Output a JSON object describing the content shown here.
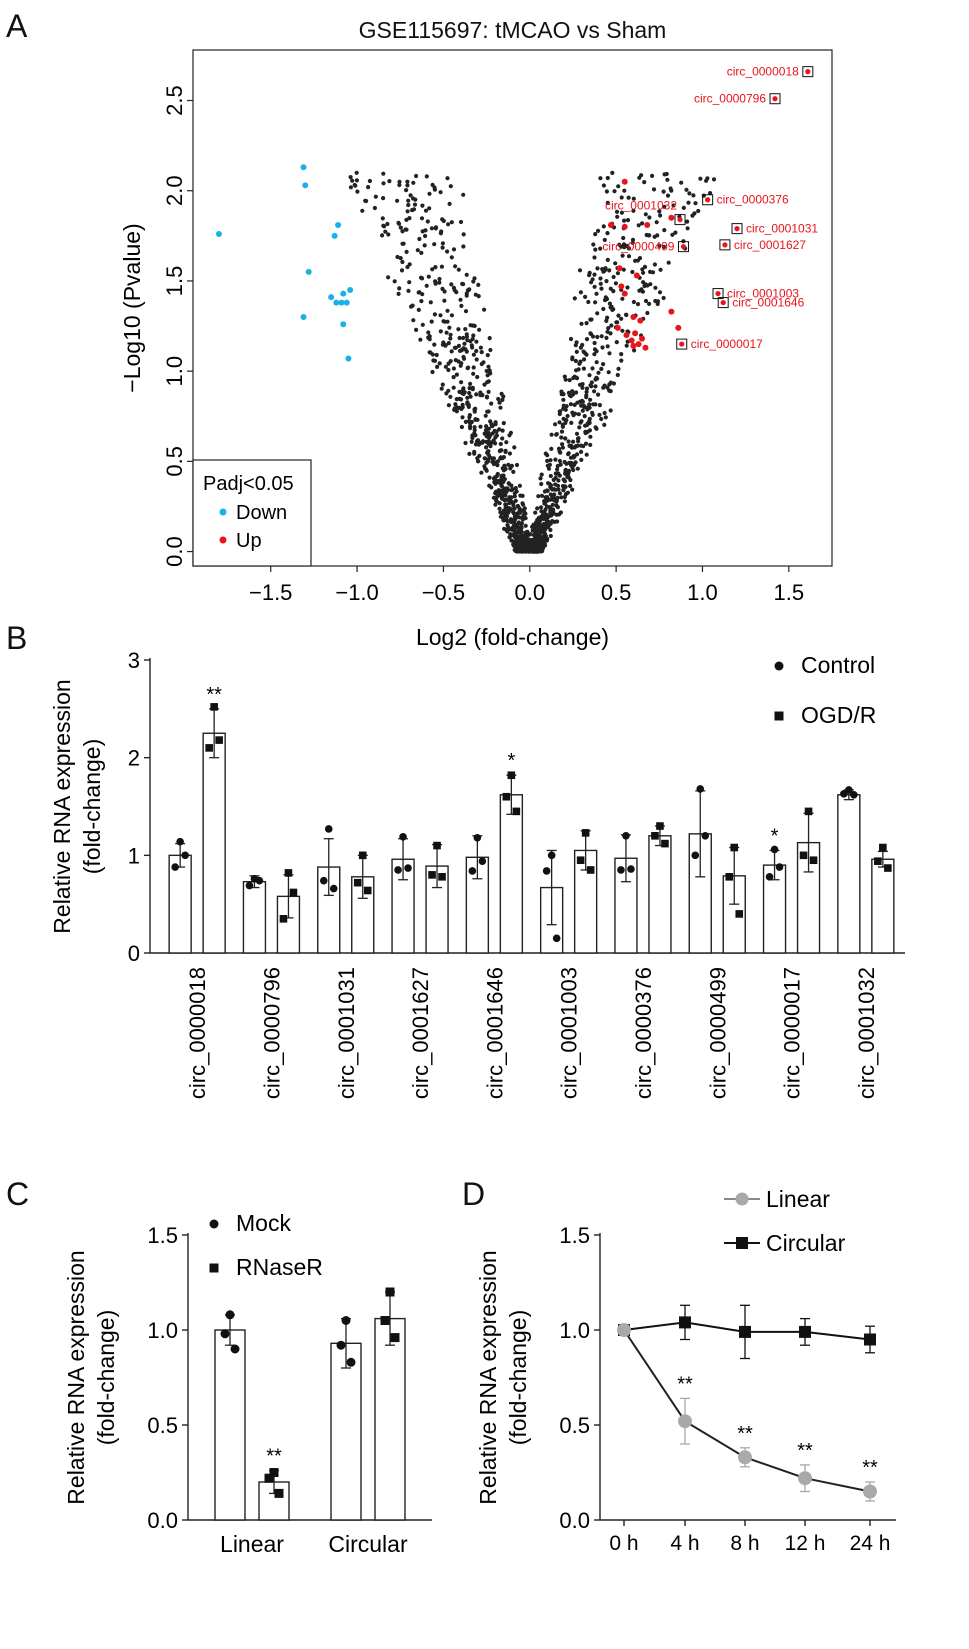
{
  "figure": {
    "panels": [
      {
        "letter": "A"
      },
      {
        "letter": "B"
      },
      {
        "letter": "C"
      },
      {
        "letter": "D"
      }
    ]
  },
  "chart_data": [
    {
      "panel": "A",
      "type": "scatter",
      "title": "GSE115697: tMCAO vs Sham",
      "xlabel": "Log2 (fold-change)",
      "ylabel": "−Log10 (Pvalue)",
      "xlim": [
        -1.95,
        1.75
      ],
      "ylim": [
        -0.08,
        2.78
      ],
      "xticks": [
        -1.5,
        -1.0,
        -0.5,
        0.0,
        0.5,
        1.0,
        1.5
      ],
      "xtick_labels": [
        "−1.5",
        "−1.0",
        "−0.5",
        "0.0",
        "0.5",
        "1.0",
        "1.5"
      ],
      "yticks": [
        0.0,
        0.5,
        1.0,
        1.5,
        2.0,
        2.5
      ],
      "ytick_labels": [
        "0.0",
        "0.5",
        "1.0",
        "1.5",
        "2.0",
        "2.5"
      ],
      "legend": {
        "title": "Padj<0.05",
        "position": "bottom-left",
        "entries": [
          "Down",
          "Up"
        ]
      },
      "colors": {
        "down": "#1bb0e8",
        "up": "#e8141c",
        "ns": "#222222"
      },
      "down": [
        [
          -1.8,
          1.76
        ],
        [
          -1.31,
          2.13
        ],
        [
          -1.3,
          2.03
        ],
        [
          -1.28,
          1.55
        ],
        [
          -1.31,
          1.3
        ],
        [
          -1.11,
          1.81
        ],
        [
          -1.13,
          1.75
        ],
        [
          -1.04,
          1.45
        ],
        [
          -1.08,
          1.43
        ],
        [
          -1.15,
          1.41
        ],
        [
          -1.12,
          1.38
        ],
        [
          -1.09,
          1.38
        ],
        [
          -1.06,
          1.38
        ],
        [
          -1.08,
          1.26
        ],
        [
          -1.05,
          1.07
        ]
      ],
      "up": [
        [
          0.55,
          2.05
        ],
        [
          0.47,
          1.81
        ],
        [
          0.55,
          1.8
        ],
        [
          0.68,
          1.81
        ],
        [
          0.82,
          1.85
        ],
        [
          0.52,
          1.57
        ],
        [
          0.62,
          1.53
        ],
        [
          0.53,
          1.47
        ],
        [
          0.55,
          1.43
        ],
        [
          0.51,
          1.24
        ],
        [
          0.6,
          1.3
        ],
        [
          0.64,
          1.28
        ],
        [
          0.82,
          1.33
        ],
        [
          0.86,
          1.24
        ],
        [
          0.56,
          1.2
        ],
        [
          0.59,
          1.17
        ],
        [
          0.61,
          1.21
        ],
        [
          0.65,
          1.18
        ],
        [
          0.67,
          1.13
        ],
        [
          0.6,
          1.14
        ],
        [
          0.63,
          1.15
        ]
      ],
      "highlighted": [
        {
          "label": "circ_0000018",
          "x": 1.61,
          "y": 2.66,
          "side": "left"
        },
        {
          "label": "circ_0000796",
          "x": 1.42,
          "y": 2.51,
          "side": "left"
        },
        {
          "label": "circ_0001032",
          "x": 0.87,
          "y": 1.84,
          "side": "above-left"
        },
        {
          "label": "circ_0000376",
          "x": 1.03,
          "y": 1.95,
          "side": "right"
        },
        {
          "label": "circ_0001031",
          "x": 1.2,
          "y": 1.79,
          "side": "right"
        },
        {
          "label": "circ_0001627",
          "x": 1.13,
          "y": 1.7,
          "side": "right"
        },
        {
          "label": "circ_0000499",
          "x": 0.89,
          "y": 1.69,
          "side": "left"
        },
        {
          "label": "circ_0001003",
          "x": 1.09,
          "y": 1.43,
          "side": "right"
        },
        {
          "label": "circ_0001646",
          "x": 1.12,
          "y": 1.38,
          "side": "right"
        },
        {
          "label": "circ_0000017",
          "x": 0.88,
          "y": 1.15,
          "side": "right"
        }
      ],
      "background_points_count": 1500,
      "gap_frac": 0.6,
      "cone_slope": 0.5
    },
    {
      "panel": "B",
      "type": "bar",
      "ylabel": [
        "Relative RNA expression",
        "(fold-change)"
      ],
      "ylim": [
        0,
        3
      ],
      "yticks": [
        0,
        1,
        2,
        3
      ],
      "categories": [
        "circ_0000018",
        "circ_0000796",
        "circ_0001031",
        "circ_0001627",
        "circ_0001646",
        "circ_0001003",
        "circ_0000376",
        "circ_0000499",
        "circ_0000017",
        "circ_0001032"
      ],
      "series": [
        {
          "name": "Control",
          "marker": "circle",
          "values": [
            1.0,
            0.73,
            0.88,
            0.96,
            0.98,
            0.67,
            0.97,
            1.22,
            0.9,
            1.62
          ],
          "errors": [
            0.12,
            0.06,
            0.29,
            0.21,
            0.22,
            0.38,
            0.24,
            0.44,
            0.15,
            0.05
          ],
          "points": [
            [
              1.14,
              0.88,
              1.0
            ],
            [
              0.76,
              0.69,
              0.74
            ],
            [
              1.27,
              0.74,
              0.66
            ],
            [
              1.19,
              0.85,
              0.87
            ],
            [
              1.18,
              0.84,
              0.94
            ],
            [
              1.0,
              0.84,
              0.15
            ],
            [
              1.2,
              0.85,
              0.86
            ],
            [
              1.68,
              1.0,
              1.2
            ],
            [
              1.06,
              0.78,
              0.88
            ],
            [
              1.67,
              1.63,
              1.62
            ]
          ],
          "annotations": [
            "",
            "",
            "",
            "",
            "",
            "",
            "",
            "",
            "*",
            ""
          ]
        },
        {
          "name": "OGD/R",
          "marker": "square",
          "values": [
            2.25,
            0.58,
            0.78,
            0.89,
            1.62,
            1.05,
            1.2,
            0.79,
            1.13,
            0.96
          ],
          "errors": [
            0.25,
            0.22,
            0.22,
            0.22,
            0.2,
            0.2,
            0.1,
            0.29,
            0.3,
            0.08
          ],
          "points": [
            [
              2.52,
              2.1,
              2.18
            ],
            [
              0.82,
              0.35,
              0.62
            ],
            [
              1.0,
              0.72,
              0.64
            ],
            [
              1.1,
              0.8,
              0.78
            ],
            [
              1.82,
              1.6,
              1.45
            ],
            [
              1.23,
              0.95,
              0.85
            ],
            [
              1.3,
              1.2,
              1.12
            ],
            [
              1.08,
              0.78,
              0.4
            ],
            [
              1.45,
              1.0,
              0.95
            ],
            [
              1.08,
              0.94,
              0.87
            ]
          ],
          "annotations": [
            "**",
            "",
            "",
            "",
            "*",
            "",
            "",
            "",
            "",
            ""
          ]
        }
      ],
      "legend": {
        "position": "top-right",
        "entries": [
          "Control",
          "OGD/R"
        ]
      }
    },
    {
      "panel": "C",
      "type": "bar",
      "ylabel": [
        "Relative RNA expression",
        "(fold-change)"
      ],
      "ylim": [
        0,
        1.5
      ],
      "yticks": [
        0.0,
        0.5,
        1.0,
        1.5
      ],
      "ytick_labels": [
        "0.0",
        "0.5",
        "1.0",
        "1.5"
      ],
      "categories": [
        "Linear",
        "Circular"
      ],
      "series": [
        {
          "name": "Mock",
          "marker": "circle",
          "values": [
            1.0,
            0.93
          ],
          "errors": [
            0.08,
            0.13
          ],
          "points": [
            [
              1.08,
              0.98,
              0.9
            ],
            [
              1.05,
              0.92,
              0.83
            ]
          ],
          "annotations": [
            "",
            ""
          ]
        },
        {
          "name": "RNaseR",
          "marker": "square",
          "values": [
            0.2,
            1.06
          ],
          "errors": [
            0.06,
            0.14
          ],
          "points": [
            [
              0.25,
              0.22,
              0.14
            ],
            [
              1.2,
              1.05,
              0.96
            ]
          ],
          "annotations": [
            "**",
            ""
          ]
        }
      ],
      "legend": {
        "position": "top-left",
        "entries": [
          "Mock",
          "RNaseR"
        ]
      }
    },
    {
      "panel": "D",
      "type": "line",
      "ylabel": [
        "Relative RNA expression",
        "(fold-change)"
      ],
      "ylim": [
        0,
        1.5
      ],
      "yticks": [
        0.0,
        0.5,
        1.0,
        1.5
      ],
      "ytick_labels": [
        "0.0",
        "0.5",
        "1.0",
        "1.5"
      ],
      "x": [
        "0 h",
        "4 h",
        "8 h",
        "12 h",
        "24 h"
      ],
      "series": [
        {
          "name": "Linear",
          "color": "#a9a9a9",
          "marker": "circle",
          "values": [
            1.0,
            0.52,
            0.33,
            0.22,
            0.15
          ],
          "errors": [
            0.0,
            0.12,
            0.05,
            0.07,
            0.05
          ],
          "annotations": [
            "",
            "**",
            "**",
            "**",
            "**"
          ]
        },
        {
          "name": "Circular",
          "color": "#111111",
          "marker": "square",
          "values": [
            1.0,
            1.04,
            0.99,
            0.99,
            0.95
          ],
          "errors": [
            0.0,
            0.09,
            0.14,
            0.07,
            0.07
          ],
          "annotations": [
            "",
            "",
            "",
            "",
            ""
          ]
        }
      ],
      "legend": {
        "position": "top-right",
        "entries": [
          "Linear",
          "Circular"
        ]
      }
    }
  ]
}
